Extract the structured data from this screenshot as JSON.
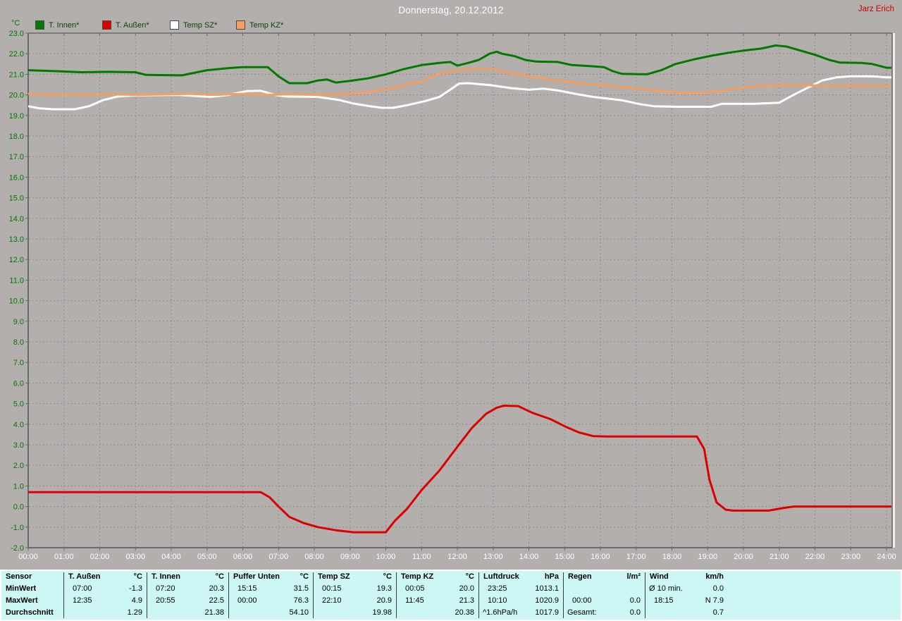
{
  "header": {
    "author": "Jarz Erich"
  },
  "colors": {
    "background": "#b2afac",
    "title_text": "#ffffff",
    "author_text": "#c80000",
    "axis_labels_green": "#007800",
    "x_labels_white": "#ffffff",
    "grid": "#8f8f8f",
    "axis": "#6a6a6a",
    "table_bg": "#cdf7f5",
    "table_text": "#000000"
  },
  "chart_data": {
    "type": "line",
    "title": "Donnerstag, 20.12.2012",
    "ylabel": "°C",
    "xlabel": "",
    "xlim": [
      0,
      24
    ],
    "ylim": [
      -2,
      23
    ],
    "grid": true,
    "legend_position": "top-left",
    "x_tick_labels": [
      "00:00",
      "01:00",
      "02:00",
      "03:00",
      "04:00",
      "05:00",
      "06:00",
      "07:00",
      "08:00",
      "09:00",
      "10:00",
      "11:00",
      "12:00",
      "13:00",
      "14:00",
      "15:00",
      "16:00",
      "17:00",
      "18:00",
      "19:00",
      "20:00",
      "21:00",
      "22:00",
      "23:00",
      "24:00"
    ],
    "y_tick_labels": [
      "23.0",
      "22.0",
      "21.0",
      "20.0",
      "19.0",
      "18.0",
      "17.0",
      "16.0",
      "15.0",
      "14.0",
      "13.0",
      "12.0",
      "11.0",
      "10.0",
      "9.0",
      "8.0",
      "7.0",
      "6.0",
      "5.0",
      "4.0",
      "3.0",
      "2.0",
      "1.0",
      "0.0",
      "-1.0",
      "-2.0"
    ],
    "series": [
      {
        "name": "T. Innen*",
        "color": "#007a00",
        "points": [
          [
            0,
            21.2
          ],
          [
            0.8,
            21.15
          ],
          [
            1.5,
            21.1
          ],
          [
            2.2,
            21.12
          ],
          [
            3.0,
            21.1
          ],
          [
            3.3,
            20.97
          ],
          [
            4.3,
            20.95
          ],
          [
            5.0,
            21.2
          ],
          [
            5.6,
            21.3
          ],
          [
            6.0,
            21.35
          ],
          [
            6.7,
            21.35
          ],
          [
            7.0,
            20.9
          ],
          [
            7.3,
            20.57
          ],
          [
            7.8,
            20.57
          ],
          [
            8.1,
            20.7
          ],
          [
            8.35,
            20.75
          ],
          [
            8.6,
            20.6
          ],
          [
            9.0,
            20.68
          ],
          [
            9.5,
            20.8
          ],
          [
            10.0,
            21.0
          ],
          [
            10.5,
            21.25
          ],
          [
            11.0,
            21.45
          ],
          [
            11.5,
            21.55
          ],
          [
            11.8,
            21.6
          ],
          [
            12.0,
            21.42
          ],
          [
            12.3,
            21.55
          ],
          [
            12.6,
            21.7
          ],
          [
            12.9,
            22.0
          ],
          [
            13.1,
            22.1
          ],
          [
            13.25,
            22.0
          ],
          [
            13.6,
            21.88
          ],
          [
            13.9,
            21.7
          ],
          [
            14.2,
            21.62
          ],
          [
            14.8,
            21.6
          ],
          [
            15.2,
            21.45
          ],
          [
            15.7,
            21.4
          ],
          [
            16.1,
            21.35
          ],
          [
            16.35,
            21.15
          ],
          [
            16.6,
            21.02
          ],
          [
            17.3,
            21.0
          ],
          [
            17.7,
            21.2
          ],
          [
            18.1,
            21.5
          ],
          [
            18.6,
            21.72
          ],
          [
            19.1,
            21.9
          ],
          [
            19.6,
            22.05
          ],
          [
            20.0,
            22.15
          ],
          [
            20.5,
            22.25
          ],
          [
            20.9,
            22.4
          ],
          [
            21.2,
            22.35
          ],
          [
            21.6,
            22.15
          ],
          [
            22.0,
            21.95
          ],
          [
            22.4,
            21.7
          ],
          [
            22.7,
            21.57
          ],
          [
            23.3,
            21.55
          ],
          [
            23.6,
            21.5
          ],
          [
            24,
            21.32
          ]
        ]
      },
      {
        "name": "T. Außen*",
        "color": "#dd0000",
        "points": [
          [
            0,
            0.7
          ],
          [
            6.5,
            0.7
          ],
          [
            6.75,
            0.45
          ],
          [
            7.0,
            0.0
          ],
          [
            7.3,
            -0.5
          ],
          [
            7.7,
            -0.8
          ],
          [
            8.1,
            -1.0
          ],
          [
            8.6,
            -1.15
          ],
          [
            9.1,
            -1.25
          ],
          [
            10.0,
            -1.25
          ],
          [
            10.25,
            -0.7
          ],
          [
            10.6,
            -0.1
          ],
          [
            11.0,
            0.8
          ],
          [
            11.5,
            1.75
          ],
          [
            12.0,
            2.9
          ],
          [
            12.4,
            3.8
          ],
          [
            12.8,
            4.5
          ],
          [
            13.1,
            4.8
          ],
          [
            13.3,
            4.9
          ],
          [
            13.7,
            4.88
          ],
          [
            14.1,
            4.55
          ],
          [
            14.6,
            4.25
          ],
          [
            15.0,
            3.9
          ],
          [
            15.4,
            3.6
          ],
          [
            15.8,
            3.42
          ],
          [
            16.2,
            3.4
          ],
          [
            18.7,
            3.4
          ],
          [
            18.9,
            2.8
          ],
          [
            19.05,
            1.3
          ],
          [
            19.25,
            0.2
          ],
          [
            19.5,
            -0.15
          ],
          [
            19.7,
            -0.2
          ],
          [
            20.7,
            -0.2
          ],
          [
            21.1,
            -0.08
          ],
          [
            21.4,
            0.0
          ],
          [
            24,
            0.0
          ]
        ]
      },
      {
        "name": "Temp SZ*",
        "color": "#ffffff",
        "points": [
          [
            0,
            19.45
          ],
          [
            0.3,
            19.35
          ],
          [
            0.7,
            19.3
          ],
          [
            1.3,
            19.3
          ],
          [
            1.7,
            19.45
          ],
          [
            2.1,
            19.75
          ],
          [
            2.5,
            19.92
          ],
          [
            3.0,
            19.98
          ],
          [
            4.2,
            20.0
          ],
          [
            4.8,
            19.93
          ],
          [
            5.1,
            19.9
          ],
          [
            5.6,
            20.0
          ],
          [
            6.1,
            20.18
          ],
          [
            6.5,
            20.2
          ],
          [
            6.9,
            20.0
          ],
          [
            7.2,
            19.92
          ],
          [
            8.1,
            19.9
          ],
          [
            8.7,
            19.75
          ],
          [
            9.1,
            19.58
          ],
          [
            9.6,
            19.44
          ],
          [
            9.9,
            19.37
          ],
          [
            10.2,
            19.37
          ],
          [
            10.6,
            19.5
          ],
          [
            11.1,
            19.7
          ],
          [
            11.5,
            19.9
          ],
          [
            11.8,
            20.25
          ],
          [
            12.05,
            20.55
          ],
          [
            12.3,
            20.57
          ],
          [
            12.9,
            20.48
          ],
          [
            13.5,
            20.33
          ],
          [
            14.0,
            20.25
          ],
          [
            14.4,
            20.3
          ],
          [
            14.8,
            20.22
          ],
          [
            15.3,
            20.05
          ],
          [
            15.8,
            19.9
          ],
          [
            16.6,
            19.74
          ],
          [
            17.1,
            19.55
          ],
          [
            17.5,
            19.45
          ],
          [
            18.2,
            19.42
          ],
          [
            19.1,
            19.42
          ],
          [
            19.4,
            19.57
          ],
          [
            20.3,
            19.57
          ],
          [
            21.0,
            19.62
          ],
          [
            21.4,
            20.0
          ],
          [
            21.8,
            20.35
          ],
          [
            22.2,
            20.7
          ],
          [
            22.6,
            20.85
          ],
          [
            23.0,
            20.9
          ],
          [
            23.6,
            20.9
          ],
          [
            24,
            20.85
          ]
        ]
      },
      {
        "name": "Temp KZ*",
        "color": "#f49f5f",
        "points": [
          [
            0,
            20.05
          ],
          [
            0.7,
            20.0
          ],
          [
            1.5,
            20.0
          ],
          [
            2.2,
            20.03
          ],
          [
            3.0,
            20.0
          ],
          [
            3.8,
            20.02
          ],
          [
            4.5,
            20.05
          ],
          [
            5.2,
            20.0
          ],
          [
            6.0,
            20.05
          ],
          [
            6.6,
            20.0
          ],
          [
            7.4,
            20.03
          ],
          [
            8.2,
            20.0
          ],
          [
            9.0,
            20.05
          ],
          [
            9.6,
            20.15
          ],
          [
            10.1,
            20.3
          ],
          [
            10.6,
            20.5
          ],
          [
            11.0,
            20.65
          ],
          [
            11.5,
            21.03
          ],
          [
            12.0,
            21.2
          ],
          [
            12.4,
            21.25
          ],
          [
            13.0,
            21.25
          ],
          [
            13.5,
            21.05
          ],
          [
            14.2,
            20.85
          ],
          [
            14.8,
            20.7
          ],
          [
            15.5,
            20.55
          ],
          [
            16.2,
            20.45
          ],
          [
            17.0,
            20.3
          ],
          [
            17.6,
            20.2
          ],
          [
            18.1,
            20.12
          ],
          [
            18.8,
            20.1
          ],
          [
            19.4,
            20.2
          ],
          [
            20.0,
            20.35
          ],
          [
            20.6,
            20.45
          ],
          [
            21.3,
            20.48
          ],
          [
            22.5,
            20.45
          ],
          [
            24,
            20.43
          ]
        ]
      }
    ]
  },
  "table": {
    "row_labels": [
      "Sensor",
      "MinWert",
      "MaxWert",
      "Durchschnitt"
    ],
    "columns": [
      {
        "title": "T. Außen",
        "unit": "°C",
        "cells": [
          [
            "07:00",
            "-1.3"
          ],
          [
            "12:35",
            "4.9"
          ],
          [
            "",
            "1.29"
          ]
        ]
      },
      {
        "title": "T. Innen",
        "unit": "°C",
        "cells": [
          [
            "07:20",
            "20.3"
          ],
          [
            "20:55",
            "22.5"
          ],
          [
            "",
            "21.38"
          ]
        ]
      },
      {
        "title": "Puffer Unten",
        "unit": "°C",
        "cells": [
          [
            "15:15",
            "31.5"
          ],
          [
            "00:00",
            "76.3"
          ],
          [
            "",
            "54.10"
          ]
        ]
      },
      {
        "title": "Temp SZ",
        "unit": "°C",
        "cells": [
          [
            "00:15",
            "19.3"
          ],
          [
            "22:10",
            "20.9"
          ],
          [
            "",
            "19.98"
          ]
        ]
      },
      {
        "title": "Temp KZ",
        "unit": "°C",
        "cells": [
          [
            "00:05",
            "20.0"
          ],
          [
            "11:45",
            "21.3"
          ],
          [
            "",
            "20.38"
          ]
        ]
      },
      {
        "title": "Luftdruck",
        "unit": "hPa",
        "cells": [
          [
            "23:25",
            "1013.1"
          ],
          [
            "10:10",
            "1020.9"
          ],
          [
            "^1.6hPa/h",
            "1017.9"
          ]
        ]
      },
      {
        "title": "Regen",
        "unit": "l/m²",
        "cells": [
          [
            "",
            ""
          ],
          [
            "00:00",
            "0.0"
          ],
          [
            "Gesamt:",
            "0.0"
          ]
        ]
      },
      {
        "title": "Wind",
        "unit": "km/h",
        "cells": [
          [
            "Ø 10 min.",
            "0.0"
          ],
          [
            "18:15",
            "N 7.9"
          ],
          [
            "",
            "0.7"
          ]
        ]
      }
    ]
  }
}
